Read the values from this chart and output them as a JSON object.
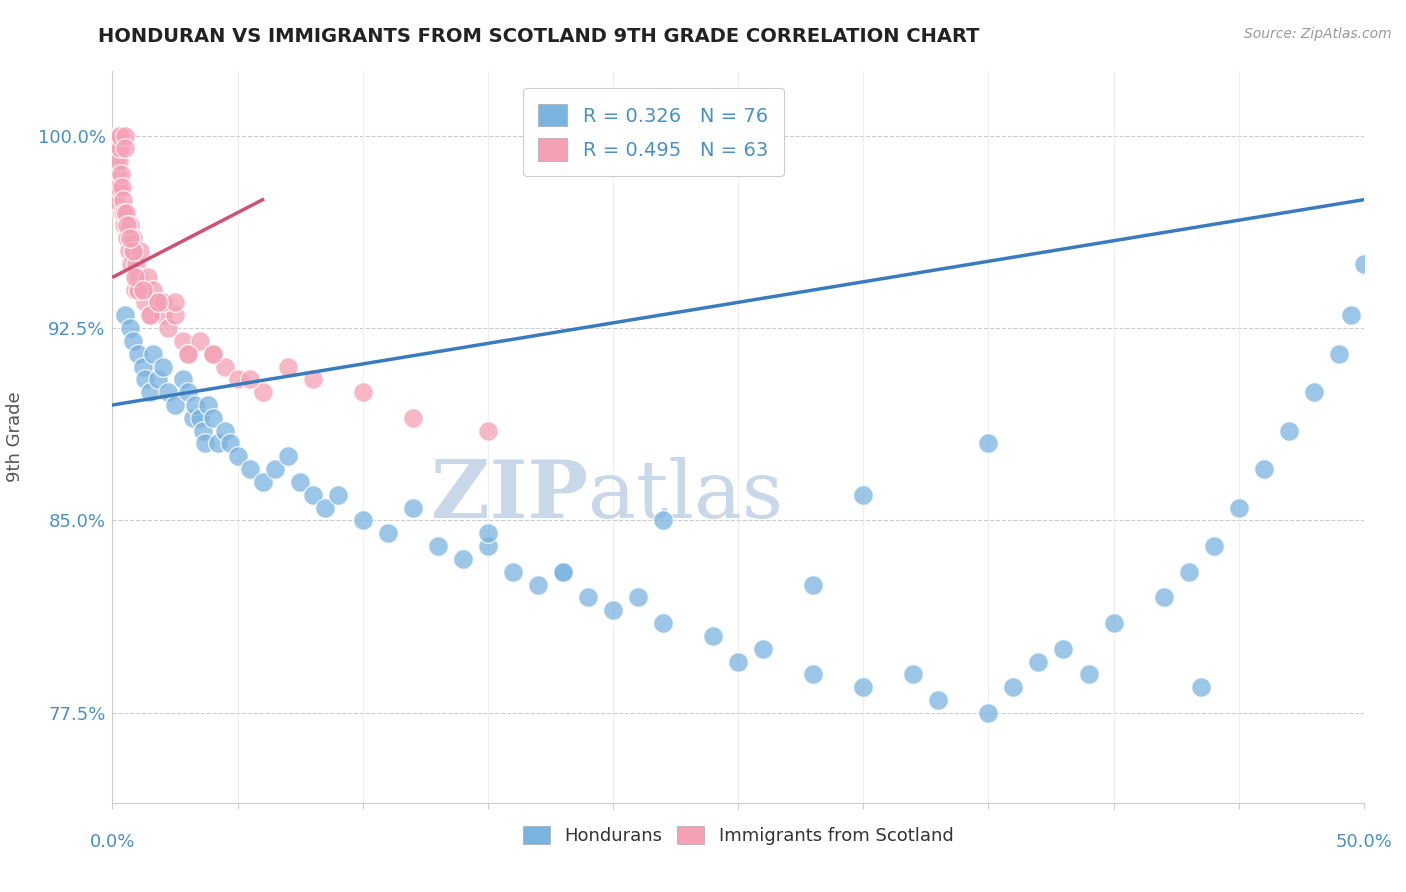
{
  "title": "HONDURAN VS IMMIGRANTS FROM SCOTLAND 9TH GRADE CORRELATION CHART",
  "source": "Source: ZipAtlas.com",
  "ylabel": "9th Grade",
  "xlim": [
    0.0,
    50.0
  ],
  "ylim": [
    74.0,
    102.5
  ],
  "yticks": [
    77.5,
    85.0,
    92.5,
    100.0
  ],
  "ytick_labels": [
    "77.5%",
    "85.0%",
    "92.5%",
    "100.0%"
  ],
  "legend_blue_text": "R = 0.326   N = 76",
  "legend_pink_text": "R = 0.495   N = 63",
  "blue_color": "#7ab3e0",
  "pink_color": "#f4a0b5",
  "blue_line_color": "#3a7bbf",
  "pink_line_color": "#d05070",
  "watermark_zip": "ZIP",
  "watermark_atlas": "atlas",
  "watermark_color_zip": "#c8d8e8",
  "watermark_color_atlas": "#c8d8e8",
  "title_color": "#222222",
  "axis_label_color": "#4a90c4",
  "grid_color": "#cccccc",
  "background_color": "#ffffff",
  "blue_scatter_x": [
    0.5,
    0.7,
    0.8,
    1.0,
    1.2,
    1.3,
    1.5,
    1.6,
    1.8,
    2.0,
    2.2,
    2.5,
    2.8,
    3.0,
    3.2,
    3.3,
    3.5,
    3.6,
    3.7,
    3.8,
    4.0,
    4.2,
    4.5,
    4.7,
    5.0,
    5.5,
    6.0,
    6.5,
    7.0,
    7.5,
    8.0,
    8.5,
    9.0,
    10.0,
    11.0,
    12.0,
    13.0,
    14.0,
    15.0,
    16.0,
    17.0,
    18.0,
    19.0,
    20.0,
    21.0,
    22.0,
    24.0,
    25.0,
    26.0,
    28.0,
    30.0,
    32.0,
    33.0,
    35.0,
    36.0,
    37.0,
    38.0,
    39.0,
    40.0,
    42.0,
    43.0,
    44.0,
    45.0,
    46.0,
    47.0,
    48.0,
    49.0,
    49.5,
    50.0,
    43.5,
    22.0,
    28.0,
    15.0,
    18.0,
    30.0,
    35.0
  ],
  "blue_scatter_y": [
    93.0,
    92.5,
    92.0,
    91.5,
    91.0,
    90.5,
    90.0,
    91.5,
    90.5,
    91.0,
    90.0,
    89.5,
    90.5,
    90.0,
    89.0,
    89.5,
    89.0,
    88.5,
    88.0,
    89.5,
    89.0,
    88.0,
    88.5,
    88.0,
    87.5,
    87.0,
    86.5,
    87.0,
    87.5,
    86.5,
    86.0,
    85.5,
    86.0,
    85.0,
    84.5,
    85.5,
    84.0,
    83.5,
    84.0,
    83.0,
    82.5,
    83.0,
    82.0,
    81.5,
    82.0,
    81.0,
    80.5,
    79.5,
    80.0,
    79.0,
    78.5,
    79.0,
    78.0,
    77.5,
    78.5,
    79.5,
    80.0,
    79.0,
    81.0,
    82.0,
    83.0,
    84.0,
    85.5,
    87.0,
    88.5,
    90.0,
    91.5,
    93.0,
    95.0,
    78.5,
    85.0,
    82.5,
    84.5,
    83.0,
    86.0,
    88.0
  ],
  "pink_scatter_x": [
    0.1,
    0.12,
    0.15,
    0.18,
    0.2,
    0.22,
    0.25,
    0.28,
    0.3,
    0.32,
    0.35,
    0.38,
    0.4,
    0.42,
    0.45,
    0.48,
    0.5,
    0.55,
    0.6,
    0.65,
    0.7,
    0.75,
    0.8,
    0.85,
    0.9,
    0.95,
    1.0,
    1.1,
    1.2,
    1.3,
    1.4,
    1.5,
    1.6,
    1.8,
    2.0,
    2.2,
    2.5,
    2.8,
    3.0,
    3.5,
    4.0,
    4.5,
    5.0,
    6.0,
    7.0,
    8.0,
    10.0,
    12.0,
    15.0,
    5.5,
    0.6,
    0.8,
    1.0,
    2.0,
    3.0,
    1.5,
    2.5,
    0.5,
    0.9,
    1.2,
    0.7,
    1.8,
    4.0
  ],
  "pink_scatter_y": [
    97.5,
    98.0,
    99.0,
    98.5,
    99.5,
    100.0,
    99.0,
    98.0,
    99.5,
    100.0,
    98.5,
    97.0,
    98.0,
    97.5,
    96.5,
    97.0,
    100.0,
    97.0,
    96.0,
    95.5,
    96.5,
    95.0,
    96.0,
    95.5,
    94.0,
    95.0,
    94.5,
    95.5,
    94.0,
    93.5,
    94.5,
    93.0,
    94.0,
    93.5,
    93.0,
    92.5,
    93.0,
    92.0,
    91.5,
    92.0,
    91.5,
    91.0,
    90.5,
    90.0,
    91.0,
    90.5,
    90.0,
    89.0,
    88.5,
    90.5,
    96.5,
    95.5,
    94.0,
    93.5,
    91.5,
    93.0,
    93.5,
    99.5,
    94.5,
    94.0,
    96.0,
    93.5,
    91.5
  ],
  "blue_line_x0": 0.0,
  "blue_line_y0": 89.5,
  "blue_line_x1": 50.0,
  "blue_line_y1": 97.5,
  "pink_line_x0": 0.05,
  "pink_line_y0": 94.5,
  "pink_line_x1": 6.0,
  "pink_line_y1": 97.5
}
